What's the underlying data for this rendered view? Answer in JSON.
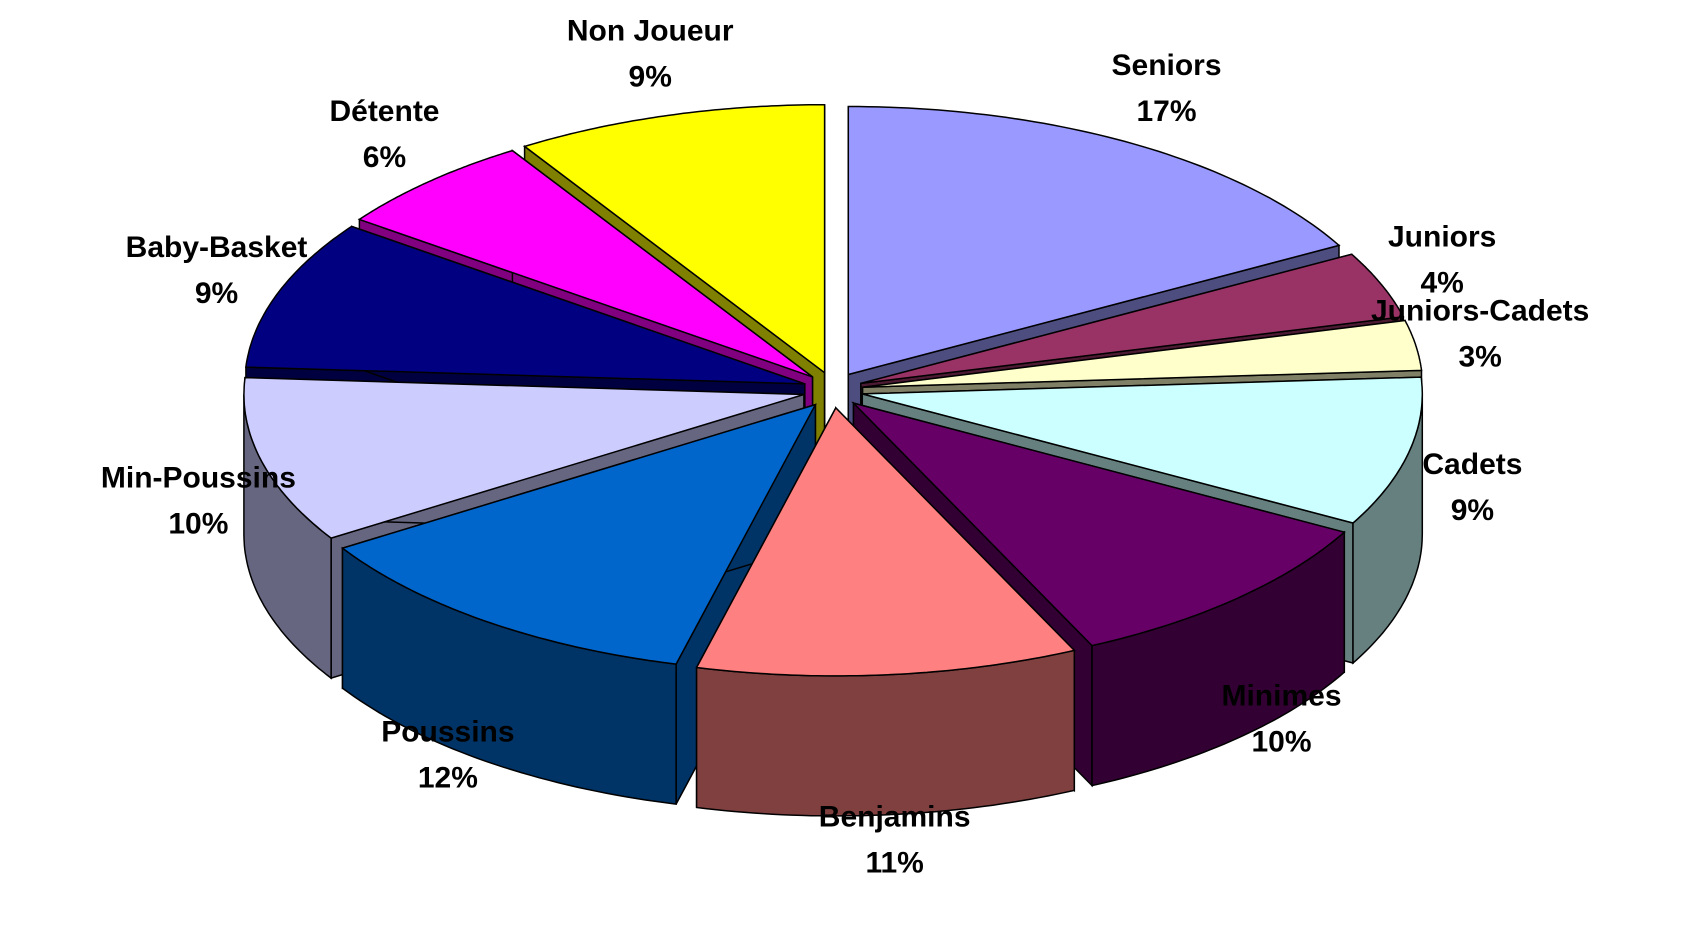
{
  "chart_data": {
    "type": "pie3d",
    "categories": [
      "Seniors",
      "Juniors",
      "Juniors-Cadets",
      "Cadets",
      "Minimes",
      "Benjamins",
      "Poussins",
      "Min-Poussins",
      "Baby-Basket",
      "Détente",
      "Non Joueur"
    ],
    "values": [
      17,
      4,
      3,
      9,
      10,
      11,
      12,
      10,
      9,
      6,
      9
    ],
    "value_labels": [
      "17%",
      "4%",
      "3%",
      "9%",
      "10%",
      "11%",
      "12%",
      "10%",
      "9%",
      "6%",
      "9%"
    ],
    "colors": [
      "#9999ff",
      "#993366",
      "#ffffcc",
      "#ccffff",
      "#660066",
      "#ff8080",
      "#0066cc",
      "#ccccff",
      "#000080",
      "#ff00ff",
      "#ffff00"
    ]
  }
}
